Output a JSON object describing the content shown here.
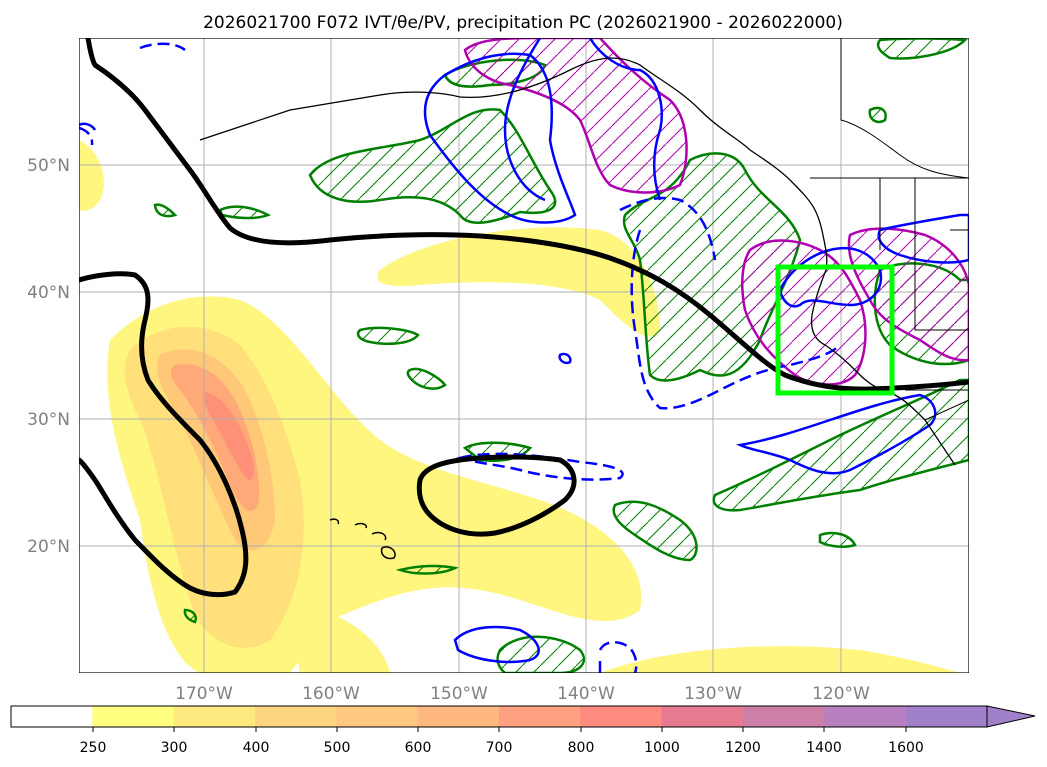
{
  "title": "2026021700 F072 IVT/θe/PV, precipitation PC (2026021900 - 2026022000)",
  "map": {
    "lat_labels": [
      "50°N",
      "40°N",
      "30°N",
      "20°N"
    ],
    "lon_labels": [
      "170°W",
      "160°W",
      "150°W",
      "140°W",
      "130°W",
      "120°W"
    ],
    "gridlines": true,
    "box_color": "#00ff00",
    "contour_colors": {
      "theta_e": "#000000",
      "pv": "#0000ff",
      "precip_positive": "#008000",
      "precip_negative": "#b000b0",
      "coastline": "#000000"
    },
    "fill_colors": [
      "#ffff70",
      "#ffe070",
      "#ffc070",
      "#ff9a70",
      "#f07080",
      "#c07ab0"
    ]
  },
  "colorbar": {
    "ticks": [
      "250",
      "300",
      "400",
      "500",
      "600",
      "700",
      "800",
      "1000",
      "1200",
      "1400",
      "1600"
    ],
    "colors": [
      "#ffffff",
      "#ffff80",
      "#ffea80",
      "#ffd680",
      "#ffc880",
      "#ffb880",
      "#ffa080",
      "#ff8a80",
      "#e67a90",
      "#cc80a8",
      "#b880c0",
      "#a080c8"
    ],
    "extend": "max"
  }
}
